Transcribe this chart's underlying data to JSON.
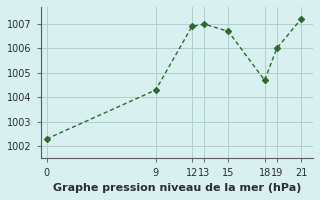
{
  "x": [
    0,
    9,
    12,
    13,
    15,
    18,
    19,
    21
  ],
  "y": [
    1002.3,
    1004.3,
    1006.9,
    1007.0,
    1006.7,
    1004.7,
    1006.0,
    1007.2
  ],
  "line_color": "#2d6a2d",
  "marker": "D",
  "marker_size": 3,
  "xlim": [
    -0.5,
    22
  ],
  "ylim": [
    1001.5,
    1007.7
  ],
  "xticks": [
    0,
    9,
    12,
    13,
    15,
    18,
    19,
    21
  ],
  "yticks": [
    1002,
    1003,
    1004,
    1005,
    1006,
    1007
  ],
  "xlabel": "Graphe pression niveau de la mer (hPa)",
  "background_color": "#d8f0f0",
  "grid_color": "#b0cece",
  "title_fontsize": 9,
  "label_fontsize": 8,
  "tick_fontsize": 7
}
